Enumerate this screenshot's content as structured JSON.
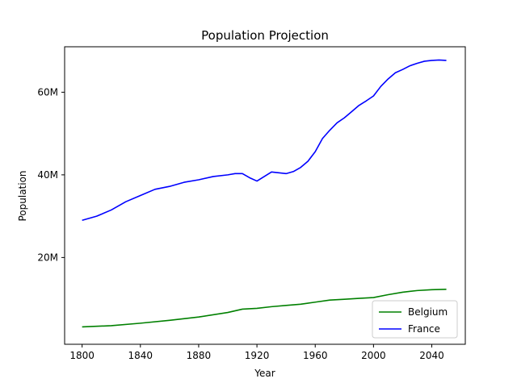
{
  "chart_data": {
    "type": "line",
    "title": "Population Projection",
    "xlabel": "Year",
    "ylabel": "Population",
    "xlim": [
      1788,
      2063
    ],
    "ylim": [
      -1000000,
      71000000
    ],
    "x_ticks": [
      {
        "value": 1800,
        "label": "1800"
      },
      {
        "value": 1840,
        "label": "1840"
      },
      {
        "value": 1880,
        "label": "1880"
      },
      {
        "value": 1920,
        "label": "1920"
      },
      {
        "value": 1960,
        "label": "1960"
      },
      {
        "value": 2000,
        "label": "2000"
      },
      {
        "value": 2040,
        "label": "2040"
      }
    ],
    "y_ticks": [
      {
        "value": 20000000,
        "label": "20M"
      },
      {
        "value": 40000000,
        "label": "40M"
      },
      {
        "value": 60000000,
        "label": "60M"
      }
    ],
    "grid": false,
    "legend_position": "lower-right",
    "series": [
      {
        "name": "Belgium",
        "color": "#008000",
        "points": [
          [
            1800,
            3200000
          ],
          [
            1820,
            3500000
          ],
          [
            1840,
            4100000
          ],
          [
            1860,
            4800000
          ],
          [
            1880,
            5600000
          ],
          [
            1900,
            6700000
          ],
          [
            1910,
            7500000
          ],
          [
            1920,
            7700000
          ],
          [
            1930,
            8100000
          ],
          [
            1940,
            8400000
          ],
          [
            1950,
            8700000
          ],
          [
            1960,
            9200000
          ],
          [
            1970,
            9700000
          ],
          [
            1980,
            9900000
          ],
          [
            1990,
            10100000
          ],
          [
            2000,
            10300000
          ],
          [
            2010,
            11000000
          ],
          [
            2020,
            11600000
          ],
          [
            2030,
            12000000
          ],
          [
            2040,
            12200000
          ],
          [
            2050,
            12300000
          ]
        ]
      },
      {
        "name": "France",
        "color": "#0000ff",
        "points": [
          [
            1800,
            29000000
          ],
          [
            1810,
            30000000
          ],
          [
            1820,
            31500000
          ],
          [
            1830,
            33500000
          ],
          [
            1840,
            35000000
          ],
          [
            1850,
            36500000
          ],
          [
            1860,
            37200000
          ],
          [
            1870,
            38200000
          ],
          [
            1880,
            38800000
          ],
          [
            1890,
            39600000
          ],
          [
            1900,
            40000000
          ],
          [
            1905,
            40300000
          ],
          [
            1910,
            40300000
          ],
          [
            1915,
            39300000
          ],
          [
            1920,
            38500000
          ],
          [
            1925,
            39600000
          ],
          [
            1930,
            40700000
          ],
          [
            1935,
            40500000
          ],
          [
            1940,
            40300000
          ],
          [
            1945,
            40800000
          ],
          [
            1950,
            41800000
          ],
          [
            1955,
            43300000
          ],
          [
            1960,
            45600000
          ],
          [
            1965,
            48800000
          ],
          [
            1970,
            50800000
          ],
          [
            1975,
            52600000
          ],
          [
            1980,
            53800000
          ],
          [
            1985,
            55300000
          ],
          [
            1990,
            56800000
          ],
          [
            1995,
            57900000
          ],
          [
            2000,
            59100000
          ],
          [
            2005,
            61400000
          ],
          [
            2010,
            63200000
          ],
          [
            2015,
            64700000
          ],
          [
            2020,
            65500000
          ],
          [
            2025,
            66400000
          ],
          [
            2030,
            67000000
          ],
          [
            2035,
            67500000
          ],
          [
            2040,
            67700000
          ],
          [
            2045,
            67800000
          ],
          [
            2050,
            67700000
          ]
        ]
      }
    ]
  }
}
